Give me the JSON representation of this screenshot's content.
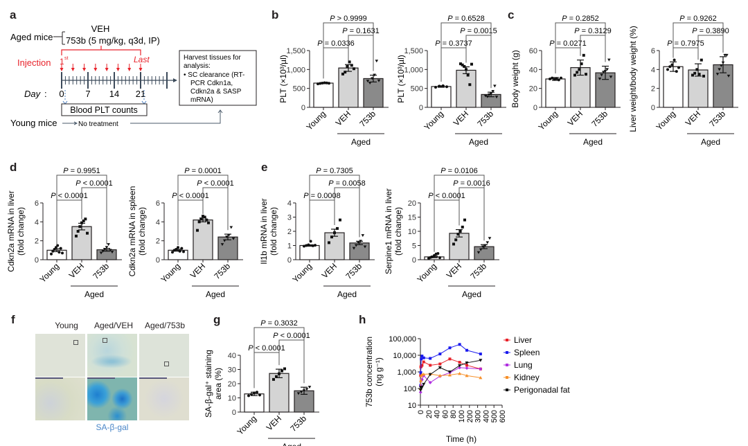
{
  "panels": {
    "a": {
      "letter": "a",
      "aged_mice": "Aged mice",
      "veh": "VEH",
      "drug": "753b (5 mg/kg, q3d, IP)",
      "injection": "Injection",
      "first": "1",
      "first_sup": "st",
      "last": "Last",
      "day_label": "Day",
      "days": [
        "0",
        "7",
        "14",
        "21"
      ],
      "blood": "Blood PLT counts",
      "harvest_lines": [
        "Harvest tissues for",
        "analysis:",
        "• SC clearance (RT-",
        "PCR Cdkn1a,",
        "Cdkn2a & SASP",
        "mRNA)"
      ],
      "young_mice": "Young mice",
      "no_treatment": "No treatment",
      "colors": {
        "red": "#e8222a",
        "blue": "#4a7fc1",
        "dark": "#3c4a5a"
      }
    },
    "b": {
      "letter": "b"
    },
    "c": {
      "letter": "c"
    },
    "d": {
      "letter": "d"
    },
    "e": {
      "letter": "e"
    },
    "f": {
      "letter": "f",
      "columns": [
        "Young",
        "Aged/VEH",
        "Aged/753b"
      ],
      "caption": "SA-β-gal"
    },
    "g": {
      "letter": "g"
    },
    "h": {
      "letter": "h"
    }
  },
  "chart_data": [
    {
      "id": "b1",
      "type": "bar",
      "panel": "b",
      "categories": [
        "Young",
        "VEH",
        "753b"
      ],
      "group_label": "Aged",
      "ylabel": "PLT (×10³/µl)",
      "ylim": [
        0,
        1500
      ],
      "yticks": [
        "0",
        "500",
        "1,000",
        "1,500"
      ],
      "ytick_values": [
        0,
        500,
        1000,
        1500
      ],
      "values": [
        640,
        1040,
        760
      ],
      "errors": [
        15,
        90,
        90
      ],
      "points": [
        [
          620,
          630,
          640,
          650,
          645,
          635
        ],
        [
          880,
          930,
          1080,
          1200,
          1110,
          1020
        ],
        [
          690,
          640,
          760,
          850,
          1220,
          700
        ]
      ],
      "comparisons": [
        {
          "a": 0,
          "b": 1,
          "label": "P = 0.0336"
        },
        {
          "a": 1,
          "b": 2,
          "label": "P = 0.1631"
        },
        {
          "a": 0,
          "b": 2,
          "label": "P > 0.9999"
        }
      ]
    },
    {
      "id": "b2",
      "type": "bar",
      "panel": "b",
      "categories": [
        "Young",
        "VEH",
        "753b"
      ],
      "group_label": "Aged",
      "ylabel": "PLT (×10³/µl)",
      "ylim": [
        0,
        1500
      ],
      "yticks": [
        "0",
        "500",
        "1,000",
        "1,500"
      ],
      "ytick_values": [
        0,
        500,
        1000,
        1500
      ],
      "values": [
        550,
        980,
        340
      ],
      "errors": [
        20,
        90,
        60
      ],
      "points": [
        [
          530,
          560,
          570,
          545
        ],
        [
          1150,
          1120,
          1080,
          1000,
          850,
          600,
          1140
        ],
        [
          300,
          280,
          330,
          360,
          420,
          560,
          270
        ]
      ],
      "comparisons": [
        {
          "a": 0,
          "b": 1,
          "label": "P = 0.3737"
        },
        {
          "a": 1,
          "b": 2,
          "label": "P = 0.0015"
        },
        {
          "a": 0,
          "b": 2,
          "label": "P = 0.6528"
        }
      ]
    },
    {
      "id": "c1",
      "type": "bar",
      "panel": "c",
      "categories": [
        "Young",
        "VEH",
        "753b"
      ],
      "group_label": "Aged",
      "ylabel": "Body weight (g)",
      "ylim": [
        0,
        60
      ],
      "yticks": [
        "0",
        "20",
        "40",
        "60"
      ],
      "ytick_values": [
        0,
        20,
        40,
        60
      ],
      "values": [
        30,
        42,
        36.5
      ],
      "errors": [
        1.5,
        8,
        7
      ],
      "points": [
        [
          30,
          31,
          29.5,
          30.5,
          29,
          31
        ],
        [
          34,
          37,
          40,
          46,
          55,
          35
        ],
        [
          30,
          34,
          37,
          38,
          40,
          50,
          32
        ]
      ],
      "comparisons": [
        {
          "a": 0,
          "b": 1,
          "label": "P = 0.0271"
        },
        {
          "a": 1,
          "b": 2,
          "label": "P = 0.3129"
        },
        {
          "a": 0,
          "b": 2,
          "label": "P = 0.2852"
        }
      ]
    },
    {
      "id": "c2",
      "type": "bar",
      "panel": "c",
      "categories": [
        "Young",
        "VEH",
        "753b"
      ],
      "group_label": "Aged",
      "ylabel": "Liver weight/body weight (%)",
      "ylim": [
        0,
        6
      ],
      "yticks": [
        "0",
        "2",
        "4",
        "6"
      ],
      "ytick_values": [
        0,
        2,
        4,
        6
      ],
      "values": [
        4.3,
        3.95,
        4.5
      ],
      "errors": [
        0.5,
        0.65,
        0.85
      ],
      "points": [
        [
          4.0,
          4.3,
          4.5,
          5.0,
          3.8,
          4.2
        ],
        [
          3.4,
          3.6,
          4.0,
          3.5,
          5.0,
          3.3
        ],
        [
          3.5,
          4.0,
          4.4,
          4.7,
          5.5,
          5.5,
          3.3
        ]
      ],
      "comparisons": [
        {
          "a": 0,
          "b": 1,
          "label": "P = 0.7975"
        },
        {
          "a": 1,
          "b": 2,
          "label": "P = 0.3890"
        },
        {
          "a": 0,
          "b": 2,
          "label": "P = 0.9262"
        }
      ]
    },
    {
      "id": "d1",
      "type": "bar",
      "panel": "d",
      "categories": [
        "Young",
        "VEH",
        "753b"
      ],
      "group_label": "Aged",
      "ylabel": "Cdkn2a mRNA in liver",
      "ylabel2": "(fold change)",
      "ylim": [
        0,
        6
      ],
      "yticks": [
        "0",
        "2",
        "4",
        "6"
      ],
      "ytick_values": [
        0,
        2,
        4,
        6
      ],
      "values": [
        1.0,
        3.5,
        1.05
      ],
      "errors": [
        0.15,
        0.35,
        0.15
      ],
      "points": [
        [
          0.6,
          0.9,
          1.1,
          1.3,
          1.5,
          0.8,
          1.2,
          0.7
        ],
        [
          2.5,
          3.0,
          3.5,
          3.9,
          4.1,
          4.3,
          2.8
        ],
        [
          0.7,
          0.9,
          1.1,
          1.3,
          1.6,
          1.0,
          0.8
        ]
      ],
      "comparisons": [
        {
          "a": 0,
          "b": 1,
          "label": "P < 0.0001"
        },
        {
          "a": 1,
          "b": 2,
          "label": "P < 0.0001"
        },
        {
          "a": 0,
          "b": 2,
          "label": "P = 0.9951"
        }
      ]
    },
    {
      "id": "d2",
      "type": "bar",
      "panel": "d",
      "categories": [
        "Young",
        "VEH",
        "753b"
      ],
      "group_label": "Aged",
      "ylabel": "Cdkn2a mRNA in spleen",
      "ylabel2": "(fold change)",
      "ylim": [
        0,
        6
      ],
      "yticks": [
        "0",
        "2",
        "4",
        "6"
      ],
      "ytick_values": [
        0,
        2,
        4,
        6
      ],
      "values": [
        1.0,
        4.2,
        2.4
      ],
      "errors": [
        0.1,
        0.2,
        0.3
      ],
      "points": [
        [
          0.8,
          1.0,
          1.1,
          1.3,
          0.9,
          1.2,
          0.85
        ],
        [
          3.1,
          4.0,
          4.3,
          4.6,
          4.5,
          4.2,
          3.9
        ],
        [
          1.6,
          2.0,
          2.4,
          2.6,
          3.4,
          2.2
        ]
      ],
      "comparisons": [
        {
          "a": 0,
          "b": 1,
          "label": "P < 0.0001"
        },
        {
          "a": 1,
          "b": 2,
          "label": "P < 0.0001"
        },
        {
          "a": 0,
          "b": 2,
          "label": "P = 0.0001"
        }
      ]
    },
    {
      "id": "e1",
      "type": "bar",
      "panel": "e",
      "categories": [
        "Young",
        "VEH",
        "753b"
      ],
      "group_label": "Aged",
      "ylabel": "Il1b mRNA in liver",
      "ylabel2": "(fold change)",
      "ylim": [
        0,
        4
      ],
      "yticks": [
        "0",
        "1",
        "2",
        "3",
        "4"
      ],
      "ytick_values": [
        0,
        1,
        2,
        3,
        4
      ],
      "values": [
        1.0,
        1.9,
        1.18
      ],
      "errors": [
        0.05,
        0.25,
        0.12
      ],
      "points": [
        [
          0.95,
          1.0,
          1.05,
          1.3,
          0.98,
          1.02
        ],
        [
          1.2,
          1.6,
          1.9,
          2.2,
          2.8
        ],
        [
          0.8,
          1.0,
          1.2,
          1.3,
          1.7,
          0.9
        ]
      ],
      "comparisons": [
        {
          "a": 0,
          "b": 1,
          "label": "P = 0.0008"
        },
        {
          "a": 1,
          "b": 2,
          "label": "P = 0.0058"
        },
        {
          "a": 0,
          "b": 2,
          "label": "P = 0.7305"
        }
      ]
    },
    {
      "id": "e2",
      "type": "bar",
      "panel": "e",
      "categories": [
        "Young",
        "VEH",
        "753b"
      ],
      "group_label": "Aged",
      "ylabel": "Serpine1 mRNA in liver",
      "ylabel2": "(fold change)",
      "ylim": [
        0,
        20
      ],
      "yticks": [
        "0",
        "5",
        "10",
        "15",
        "20"
      ],
      "ytick_values": [
        0,
        5,
        10,
        15,
        20
      ],
      "values": [
        1.0,
        9.3,
        4.6
      ],
      "errors": [
        0.3,
        1.3,
        0.7
      ],
      "points": [
        [
          0.5,
          0.8,
          1.0,
          1.5,
          2.0,
          2.2,
          0.7
        ],
        [
          5.5,
          7.0,
          9.0,
          10.0,
          11.5,
          14.0
        ],
        [
          2.5,
          3.5,
          4.5,
          5.0,
          6.0,
          7.5
        ]
      ],
      "comparisons": [
        {
          "a": 0,
          "b": 1,
          "label": "P < 0.0001"
        },
        {
          "a": 1,
          "b": 2,
          "label": "P = 0.0016"
        },
        {
          "a": 0,
          "b": 2,
          "label": "P = 0.0106"
        }
      ]
    },
    {
      "id": "g1",
      "type": "bar",
      "panel": "g",
      "categories": [
        "Young",
        "VEH",
        "753b"
      ],
      "group_label": "Aged",
      "ylabel": "SA-β-gal⁺ staining",
      "ylabel2": "area (%)",
      "ylim": [
        0,
        40
      ],
      "yticks": [
        "0",
        "10",
        "20",
        "30",
        "40"
      ],
      "ytick_values": [
        0,
        10,
        20,
        30,
        40
      ],
      "values": [
        12.8,
        27.2,
        15.0
      ],
      "errors": [
        1.2,
        3.0,
        2.5
      ],
      "points": [
        [
          11.5,
          12.5,
          13.5,
          14.0,
          12.0
        ],
        [
          23,
          25,
          27,
          29,
          30.5
        ],
        [
          13,
          14,
          15,
          16,
          17.5
        ]
      ],
      "comparisons": [
        {
          "a": 0,
          "b": 1,
          "label": "P < 0.0001"
        },
        {
          "a": 1,
          "b": 2,
          "label": "P < 0.0001"
        },
        {
          "a": 0,
          "b": 2,
          "label": "P = 0.3032"
        }
      ]
    },
    {
      "id": "h1",
      "type": "line",
      "panel": "h",
      "ylabel": "753b concentration",
      "ylabel2": "(ng g⁻¹)",
      "xlabel": "Time (h)",
      "yscale": "log",
      "ylim": [
        10,
        100000
      ],
      "yticks": [
        "10",
        "100",
        "1,000",
        "10,000",
        "100,000"
      ],
      "ytick_values": [
        10,
        100,
        1000,
        10000,
        100000
      ],
      "xticks": [
        "0",
        "20",
        "40",
        "60",
        "80",
        "100",
        "200",
        "300",
        "400",
        "500",
        "600"
      ],
      "x": [
        0.5,
        1,
        2,
        4,
        8,
        24,
        48,
        72,
        96,
        168,
        336
      ],
      "legend_position": "right",
      "series": [
        {
          "name": "Liver",
          "color": "#e8222a",
          "marker": "square",
          "values": [
            600,
            2000,
            2200,
            2500,
            4000,
            2500,
            3000,
            6000,
            3800,
            2500,
            1500
          ]
        },
        {
          "name": "Spleen",
          "color": "#1a1aee",
          "marker": "square",
          "values": [
            150,
            900,
            6000,
            9000,
            7000,
            6500,
            12000,
            28000,
            45000,
            20000,
            12000
          ]
        },
        {
          "name": "Lung",
          "color": "#b030e0",
          "marker": "diamond",
          "values": [
            60,
            150,
            300,
            350,
            600,
            230,
            550,
            900,
            1800,
            1700,
            1500
          ]
        },
        {
          "name": "Kidney",
          "color": "#f7902a",
          "marker": "triangle",
          "values": [
            100,
            300,
            600,
            700,
            720,
            750,
            600,
            650,
            800,
            600,
            450
          ]
        },
        {
          "name": "Perigonadal fat",
          "color": "#111111",
          "marker": "triangle-down",
          "values": [
            80,
            120,
            100,
            120,
            180,
            700,
            1800,
            1000,
            2400,
            3500,
            5000
          ]
        }
      ]
    }
  ]
}
